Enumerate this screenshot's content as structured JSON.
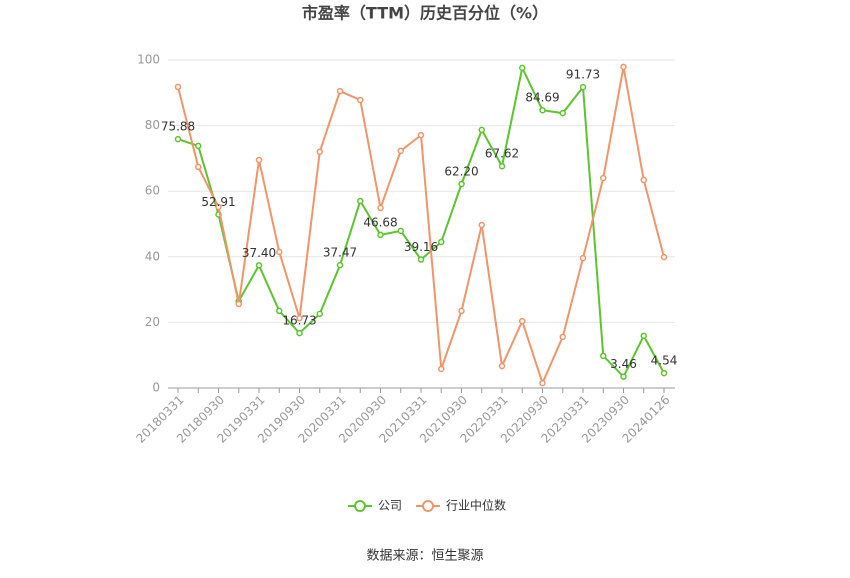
{
  "chart_data": {
    "type": "line",
    "title": "市盈率（TTM）历史百分位（%）",
    "source": "数据来源：恒生聚源",
    "categories": [
      "20180331",
      null,
      "20180930",
      null,
      "20190331",
      null,
      "20190930",
      null,
      "20200331",
      null,
      "20200930",
      null,
      "20210331",
      null,
      "20210930",
      null,
      "20220331",
      null,
      "20220930",
      null,
      "20230331",
      null,
      "20230930",
      null,
      "20240126"
    ],
    "series": [
      {
        "name": "公司",
        "color": "#5cc42e",
        "values": [
          75.88,
          73.8,
          52.91,
          26.5,
          37.4,
          23.5,
          16.73,
          22.6,
          37.47,
          57.0,
          46.68,
          47.9,
          39.16,
          44.5,
          62.2,
          78.7,
          67.62,
          97.6,
          84.69,
          83.8,
          91.73,
          9.8,
          3.46,
          15.9,
          4.54
        ],
        "value_labels": [
          "75.88",
          null,
          "52.91",
          null,
          "37.40",
          null,
          "16.73",
          null,
          "37.47",
          null,
          "46.68",
          null,
          "39.16",
          null,
          "62.20",
          null,
          "67.62",
          null,
          "84.69",
          null,
          "91.73",
          null,
          "3.46",
          null,
          "4.54"
        ]
      },
      {
        "name": "行业中位数",
        "color": "#f0956a",
        "values": [
          91.8,
          67.4,
          55.2,
          25.6,
          69.5,
          41.5,
          21.3,
          72.0,
          90.5,
          87.8,
          54.9,
          72.3,
          77.1,
          5.8,
          23.5,
          49.7,
          6.7,
          20.4,
          1.5,
          15.6,
          39.6,
          64.0,
          97.9,
          63.4,
          39.9
        ]
      }
    ],
    "ylim": [
      0,
      100
    ],
    "yticks": [
      0,
      20,
      40,
      60,
      80,
      100
    ],
    "grid": true,
    "legend": "bottom"
  }
}
